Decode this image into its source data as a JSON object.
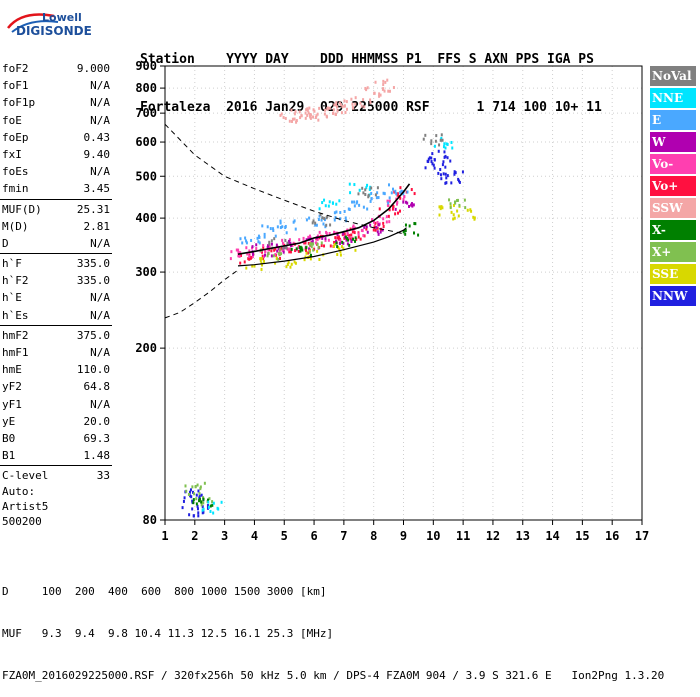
{
  "logo": {
    "line1": "Lowell",
    "line2": "DIGISONDE"
  },
  "header": {
    "line1": "Station    YYYY DAY    DDD HHMMSS P1  FFS S AXN PPS IGA PS",
    "line2": "Fortaleza  2016 Jan29  029 225000 RSF      1 714 100 10+ 11"
  },
  "params": [
    {
      "label": "foF2",
      "value": "9.000"
    },
    {
      "label": "foF1",
      "value": "N/A"
    },
    {
      "label": "foF1p",
      "value": "N/A"
    },
    {
      "label": "foE",
      "value": "N/A"
    },
    {
      "label": "foEp",
      "value": "0.43"
    },
    {
      "label": "fxI",
      "value": "9.40"
    },
    {
      "label": "foEs",
      "value": "N/A"
    },
    {
      "label": "fmin",
      "value": "3.45"
    },
    {
      "label": "MUF(D)",
      "value": "25.31"
    },
    {
      "label": "M(D)",
      "value": "2.81"
    },
    {
      "label": "D",
      "value": "N/A"
    },
    {
      "label": "h`F",
      "value": "335.0"
    },
    {
      "label": "h`F2",
      "value": "335.0"
    },
    {
      "label": "h`E",
      "value": "N/A"
    },
    {
      "label": "h`Es",
      "value": "N/A"
    },
    {
      "label": "hmF2",
      "value": "375.0"
    },
    {
      "label": "hmF1",
      "value": "N/A"
    },
    {
      "label": "hmE",
      "value": "110.0"
    },
    {
      "label": "yF2",
      "value": "64.8"
    },
    {
      "label": "yF1",
      "value": "N/A"
    },
    {
      "label": "yE",
      "value": "20.0"
    },
    {
      "label": "B0",
      "value": "69.3"
    },
    {
      "label": "B1",
      "value": "1.48"
    },
    {
      "label": "C-level",
      "value": "33"
    }
  ],
  "auto": {
    "line1": "Auto:",
    "line2": "Artist5",
    "line3": "500200"
  },
  "footer": {
    "line1": "D     100  200  400  600  800 1000 1500 3000 [km]",
    "line2": "MUF   9.3  9.4  9.8 10.4 11.3 12.5 16.1 25.3 [MHz]",
    "line3": "FZA0M_2016029225000.RSF / 320fx256h 50 kHz 5.0 km / DPS-4 FZA0M 904 / 3.9 S 321.6 E   Ion2Png 1.3.20"
  },
  "legend": [
    {
      "label": "NoVal",
      "color": "#808080"
    },
    {
      "label": "NNE",
      "color": "#00e5ff"
    },
    {
      "label": "E",
      "color": "#4aa8ff"
    },
    {
      "label": "W",
      "color": "#b000b0"
    },
    {
      "label": "Vo-",
      "color": "#ff3fb0"
    },
    {
      "label": "Vo+",
      "color": "#ff1040"
    },
    {
      "label": "SSW",
      "color": "#f4a6a6"
    },
    {
      "label": "X-",
      "color": "#008000"
    },
    {
      "label": "X+",
      "color": "#80c050"
    },
    {
      "label": "SSE",
      "color": "#d8d800"
    },
    {
      "label": "NNW",
      "color": "#2020e0"
    }
  ],
  "chart_data": {
    "type": "scatter",
    "xlim": [
      1,
      17
    ],
    "ylim": [
      80,
      900
    ],
    "yscale": "log",
    "x_ticks": [
      1,
      2,
      3,
      4,
      5,
      6,
      7,
      8,
      9,
      10,
      11,
      12,
      13,
      14,
      15,
      16,
      17
    ],
    "y_ticks": [
      80,
      200,
      300,
      400,
      500,
      600,
      700,
      800,
      900
    ],
    "grid": true,
    "legend_position": "right",
    "ordinary_trace": {
      "x": [
        3.45,
        4.0,
        4.5,
        5.0,
        5.5,
        6.0,
        6.5,
        7.0,
        7.5,
        8.0,
        8.5,
        9.0,
        9.2
      ],
      "y": [
        330,
        335,
        340,
        345,
        350,
        360,
        365,
        372,
        380,
        395,
        420,
        460,
        480
      ]
    },
    "profile_curve": {
      "x": [
        3.45,
        4.0,
        5.0,
        6.0,
        7.0,
        8.0,
        8.5,
        9.0,
        9.1
      ],
      "y": [
        310,
        312,
        318,
        326,
        338,
        352,
        362,
        375,
        380
      ]
    },
    "muf_dashed_curve": {
      "x": [
        1.0,
        2.0,
        3.0,
        4.0,
        5.0,
        6.0,
        7.0,
        8.0,
        8.7,
        9.0
      ],
      "y": [
        660,
        560,
        500,
        468,
        440,
        415,
        395,
        380,
        372,
        368
      ]
    },
    "lower_dashed_curve": {
      "x": [
        1.0,
        1.5,
        2.0,
        2.5,
        3.0,
        3.5
      ],
      "y": [
        235,
        242,
        255,
        270,
        288,
        305
      ]
    },
    "echo_clusters": [
      {
        "series": "Vo+",
        "x": [
          3.8,
          4.5,
          5.0,
          5.5,
          6.0,
          6.5,
          7.0,
          7.5,
          8.0,
          8.5,
          9.0
        ],
        "y": [
          325,
          335,
          340,
          345,
          350,
          355,
          360,
          370,
          390,
          420,
          460
        ]
      },
      {
        "series": "Vo-",
        "x": [
          3.5,
          4.0,
          4.6,
          5.2,
          5.8,
          6.4,
          7.0,
          7.6,
          8.2,
          8.8
        ],
        "y": [
          330,
          338,
          342,
          350,
          356,
          362,
          368,
          378,
          400,
          440
        ]
      },
      {
        "series": "E",
        "x": [
          3.8,
          4.5,
          5.2,
          6.0,
          6.8,
          7.5,
          8.2,
          8.8
        ],
        "y": [
          360,
          375,
          385,
          395,
          410,
          430,
          450,
          470
        ]
      },
      {
        "series": "W",
        "x": [
          4.2,
          5.0,
          6.0,
          7.0,
          8.0,
          9.0
        ],
        "y": [
          340,
          345,
          352,
          362,
          380,
          430
        ]
      },
      {
        "series": "NNW",
        "x": [
          1.9,
          2.0,
          2.1,
          10.0,
          10.2,
          10.4,
          10.6
        ],
        "y": [
          88,
          92,
          85,
          540,
          560,
          520,
          500
        ]
      },
      {
        "series": "SSW",
        "x": [
          5.2,
          5.5,
          5.8,
          6.1,
          6.4,
          6.7,
          7.0,
          7.5,
          8.0,
          8.3
        ],
        "y": [
          690,
          695,
          700,
          705,
          712,
          720,
          730,
          745,
          785,
          815
        ]
      },
      {
        "series": "SSE",
        "x": [
          4.0,
          5.0,
          6.0,
          7.0,
          10.5,
          11.0
        ],
        "y": [
          315,
          320,
          330,
          340,
          420,
          410
        ]
      },
      {
        "series": "X+",
        "x": [
          2.0,
          2.3,
          4.5,
          6.0,
          10.8
        ],
        "y": [
          95,
          90,
          330,
          345,
          440
        ]
      },
      {
        "series": "X-",
        "x": [
          2.2,
          5.5,
          7.0,
          9.3
        ],
        "y": [
          88,
          340,
          355,
          380
        ]
      },
      {
        "series": "NNE",
        "x": [
          2.5,
          6.5,
          7.5,
          10.3
        ],
        "y": [
          86,
          430,
          470,
          600
        ]
      },
      {
        "series": "NoVal",
        "x": [
          4.8,
          6.2,
          7.8,
          10.0
        ],
        "y": [
          350,
          400,
          460,
          610
        ]
      }
    ]
  }
}
